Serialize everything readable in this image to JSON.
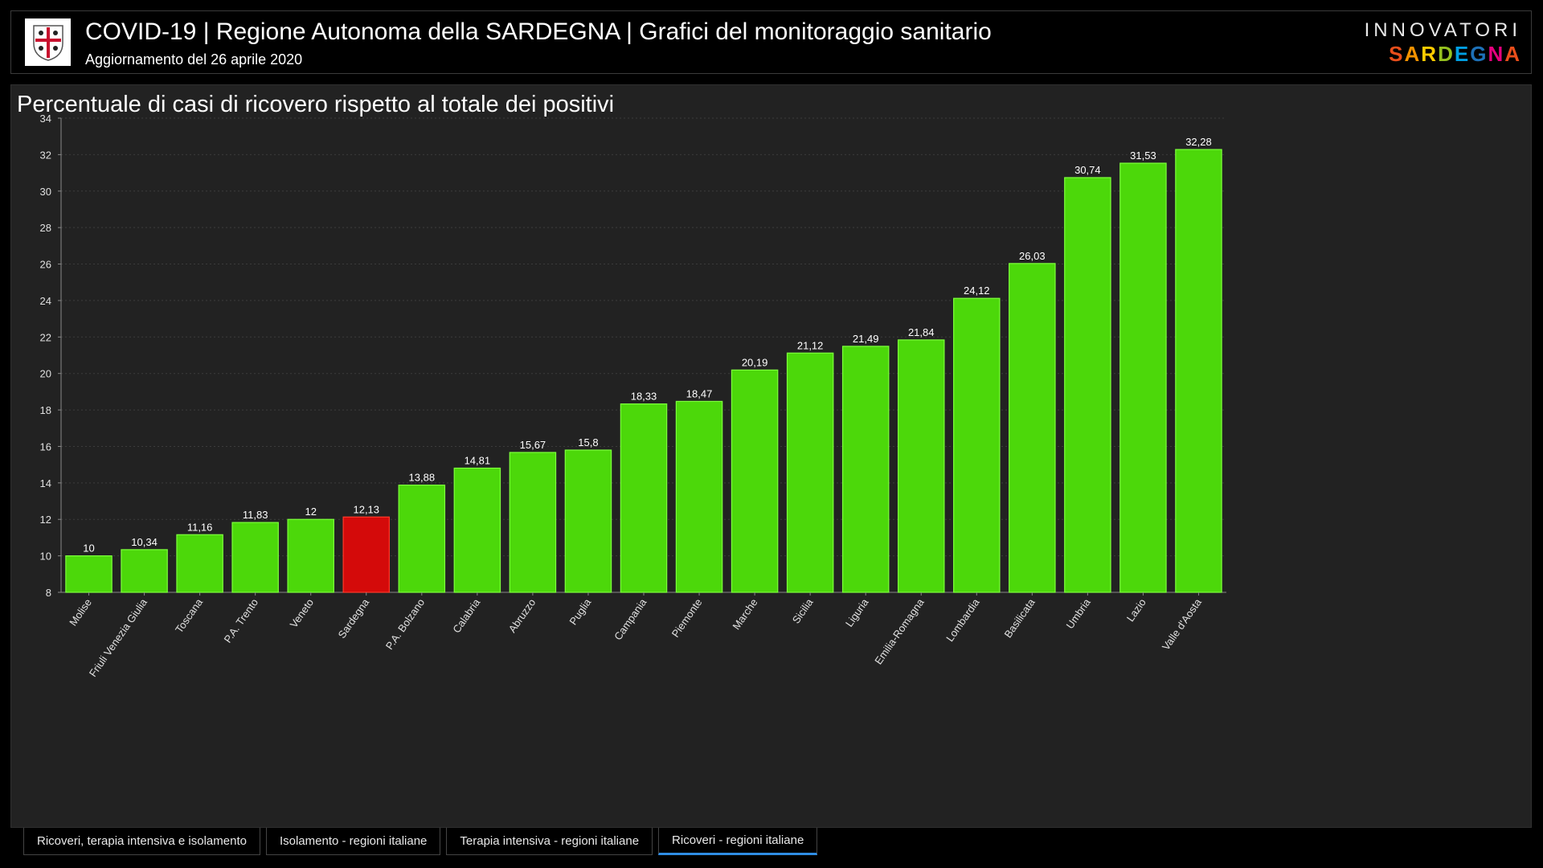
{
  "header": {
    "title": "COVID-19 | Regione Autonoma della SARDEGNA | Grafici del monitoraggio sanitario",
    "subtitle": "Aggiornamento del 26 aprile 2020",
    "logo_icon": "regional-crest-icon",
    "brand_top": "INNOVATORI",
    "brand_bottom": "SARDEGNA"
  },
  "colors": {
    "bar": "#4cd80a",
    "highlight": "#d40a0a",
    "panel": "#222222",
    "tab_active": "#2f8de4"
  },
  "chart_data": {
    "type": "bar",
    "title": "Percentuale di casi di ricovero rispetto al totale dei positivi",
    "categories": [
      "Molise",
      "Friuli Venezia Giulia",
      "Toscana",
      "P.A. Trento",
      "Veneto",
      "Sardegna",
      "P.A. Bolzano",
      "Calabria",
      "Abruzzo",
      "Puglia",
      "Campania",
      "Piemonte",
      "Marche",
      "Sicilia",
      "Liguria",
      "Emilia-Romagna",
      "Lombardia",
      "Basilicata",
      "Umbria",
      "Lazio",
      "Valle d'Aosta"
    ],
    "values": [
      10,
      10.34,
      11.16,
      11.83,
      12,
      12.13,
      13.88,
      14.81,
      15.67,
      15.8,
      18.33,
      18.47,
      20.19,
      21.12,
      21.49,
      21.84,
      24.12,
      26.03,
      30.74,
      31.53,
      32.28
    ],
    "value_labels": [
      "10",
      "10,34",
      "11,16",
      "11,83",
      "12",
      "12,13",
      "13,88",
      "14,81",
      "15,67",
      "15,8",
      "18,33",
      "18,47",
      "20,19",
      "21,12",
      "21,49",
      "21,84",
      "24,12",
      "26,03",
      "30,74",
      "31,53",
      "32,28"
    ],
    "highlight_category": "Sardegna",
    "ylim": [
      8,
      34
    ],
    "yticks": [
      8,
      10,
      12,
      14,
      16,
      18,
      20,
      22,
      24,
      26,
      28,
      30,
      32,
      34
    ],
    "xlabel": "",
    "ylabel": "",
    "grid": true,
    "legend": "none"
  },
  "tabs": [
    {
      "label": "Ricoveri, terapia intensiva e isolamento",
      "active": false
    },
    {
      "label": "Isolamento - regioni italiane",
      "active": false
    },
    {
      "label": "Terapia intensiva - regioni italiane",
      "active": false
    },
    {
      "label": "Ricoveri - regioni italiane",
      "active": true
    }
  ]
}
